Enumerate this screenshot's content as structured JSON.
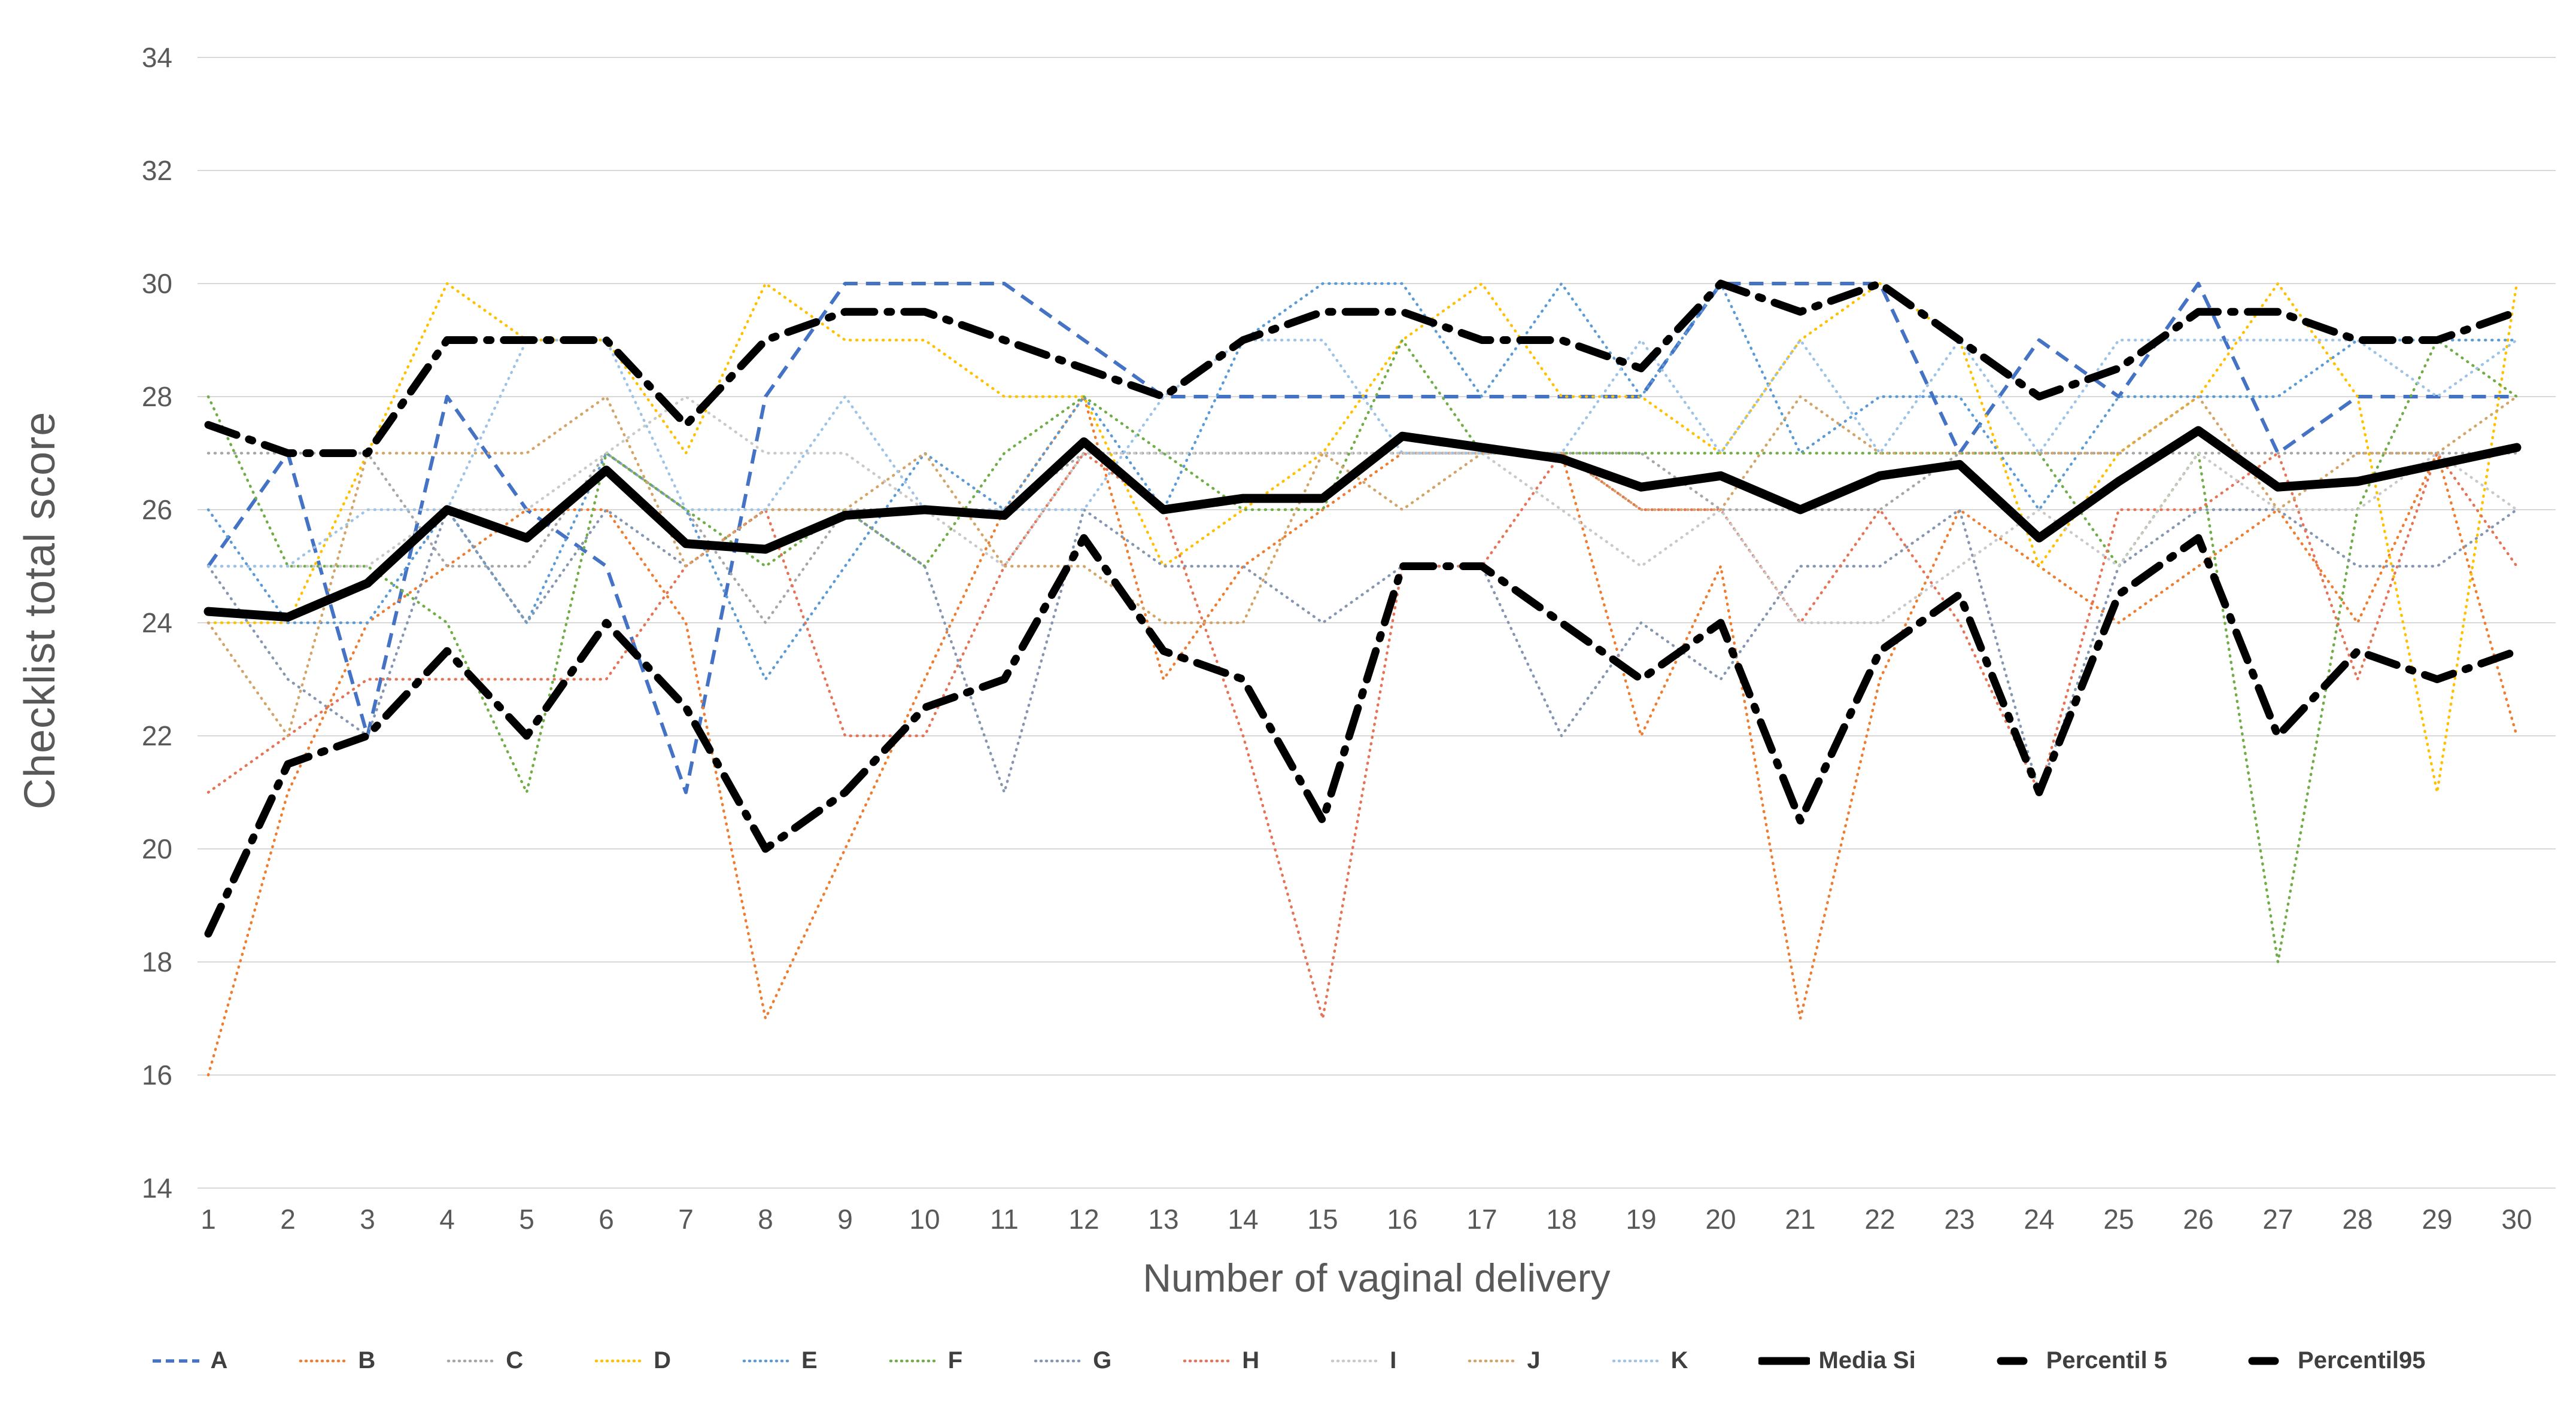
{
  "chart_data": {
    "type": "line",
    "title": "",
    "xlabel": "Number of vaginal delivery",
    "ylabel": "Checklist total score",
    "x": [
      1,
      2,
      3,
      4,
      5,
      6,
      7,
      8,
      9,
      10,
      11,
      12,
      13,
      14,
      15,
      16,
      17,
      18,
      19,
      20,
      21,
      22,
      23,
      24,
      25,
      26,
      27,
      28,
      29,
      30
    ],
    "ylim": [
      14,
      34
    ],
    "ytick_step": 2,
    "grid": true,
    "legend_position": "bottom",
    "grid_color": "#D9D9D9",
    "axis_text_color": "#595959",
    "series": [
      {
        "name": "A",
        "color": "#4472C4",
        "style": "dashed",
        "bold": false,
        "values": [
          25,
          27,
          22,
          28,
          26,
          25,
          21,
          28,
          30,
          30,
          30,
          29,
          28,
          28,
          28,
          28,
          28,
          28,
          28,
          30,
          30,
          30,
          27,
          29,
          28,
          30,
          27,
          28,
          28,
          28
        ]
      },
      {
        "name": "B",
        "color": "#ED7D31",
        "style": "dotted",
        "bold": false,
        "values": [
          16,
          21,
          24,
          25,
          26,
          26,
          24,
          17,
          20,
          23,
          26,
          28,
          23,
          25,
          26,
          27,
          27,
          27,
          22,
          25,
          17,
          23,
          26,
          25,
          24,
          25,
          26,
          24,
          27,
          22
        ]
      },
      {
        "name": "C",
        "color": "#A6A6A6",
        "style": "dotted",
        "bold": false,
        "values": [
          27,
          27,
          27,
          25,
          25,
          27,
          26,
          24,
          26,
          26,
          26,
          27,
          27,
          27,
          27,
          27,
          27,
          27,
          27,
          26,
          26,
          26,
          27,
          27,
          27,
          27,
          27,
          27,
          27,
          27
        ]
      },
      {
        "name": "D",
        "color": "#FFC000",
        "style": "dotted",
        "bold": false,
        "values": [
          24,
          24,
          27,
          30,
          29,
          29,
          27,
          30,
          29,
          29,
          28,
          28,
          25,
          26,
          27,
          29,
          30,
          28,
          28,
          27,
          29,
          30,
          29,
          25,
          27,
          28,
          30,
          28,
          21,
          30
        ]
      },
      {
        "name": "E",
        "color": "#5B9BD5",
        "style": "dotted",
        "bold": false,
        "values": [
          26,
          24,
          24,
          26,
          24,
          27,
          26,
          23,
          25,
          27,
          26,
          28,
          26,
          29,
          30,
          30,
          28,
          30,
          28,
          30,
          27,
          28,
          28,
          26,
          28,
          28,
          28,
          29,
          29,
          29
        ]
      },
      {
        "name": "F",
        "color": "#70AD47",
        "style": "dotted",
        "bold": false,
        "values": [
          28,
          25,
          25,
          24,
          21,
          27,
          26,
          25,
          26,
          25,
          27,
          28,
          27,
          26,
          26,
          29,
          27,
          27,
          27,
          27,
          27,
          27,
          27,
          27,
          25,
          27,
          18,
          26,
          29,
          28
        ]
      },
      {
        "name": "G",
        "color": "#8496B0",
        "style": "dotted",
        "bold": false,
        "values": [
          25,
          23,
          22,
          26,
          24,
          26,
          25,
          26,
          26,
          25,
          21,
          26,
          25,
          25,
          24,
          25,
          25,
          22,
          24,
          23,
          25,
          25,
          26,
          21,
          25,
          26,
          26,
          25,
          25,
          26
        ]
      },
      {
        "name": "H",
        "color": "#E57457",
        "style": "dotted",
        "bold": false,
        "values": [
          21,
          22,
          23,
          23,
          23,
          23,
          25,
          26,
          22,
          22,
          25,
          27,
          26,
          22,
          17,
          25,
          25,
          27,
          26,
          26,
          24,
          26,
          24,
          21,
          26,
          26,
          27,
          23,
          27,
          25
        ]
      },
      {
        "name": "I",
        "color": "#C9C9C9",
        "style": "dotted",
        "bold": false,
        "values": [
          25,
          25,
          25,
          26,
          26,
          27,
          28,
          27,
          27,
          26,
          25,
          27,
          27,
          27,
          27,
          27,
          27,
          26,
          25,
          26,
          24,
          24,
          25,
          26,
          25,
          27,
          26,
          26,
          27,
          26
        ]
      },
      {
        "name": "J",
        "color": "#D2A467",
        "style": "dotted",
        "bold": false,
        "values": [
          24,
          22,
          27,
          27,
          27,
          28,
          25,
          26,
          26,
          27,
          25,
          25,
          24,
          24,
          27,
          26,
          27,
          27,
          26,
          26,
          28,
          27,
          27,
          27,
          27,
          28,
          26,
          27,
          27,
          28
        ]
      },
      {
        "name": "K",
        "color": "#9DC3E6",
        "style": "dotted",
        "bold": false,
        "values": [
          25,
          25,
          26,
          26,
          29,
          29,
          26,
          26,
          28,
          26,
          26,
          26,
          28,
          29,
          29,
          27,
          27,
          27,
          29,
          27,
          29,
          27,
          29,
          27,
          29,
          29,
          29,
          29,
          28,
          29
        ]
      },
      {
        "name": "Media Si",
        "color": "#000000",
        "style": "solid",
        "bold": true,
        "values": [
          24.2,
          24.1,
          24.7,
          26.0,
          25.5,
          26.7,
          25.4,
          25.3,
          25.9,
          26.0,
          25.9,
          27.2,
          26.0,
          26.2,
          26.2,
          27.3,
          27.1,
          26.9,
          26.4,
          26.6,
          26.0,
          26.6,
          26.8,
          25.5,
          26.5,
          27.4,
          26.4,
          26.5,
          26.8,
          27.1
        ]
      },
      {
        "name": "Percentil 5",
        "color": "#000000",
        "style": "dashdot",
        "bold": true,
        "values": [
          18.5,
          21.5,
          22.0,
          23.5,
          22.0,
          24.0,
          22.5,
          20.0,
          21.0,
          22.5,
          23.0,
          25.5,
          23.5,
          23.0,
          20.5,
          25.0,
          25.0,
          24.0,
          23.0,
          24.0,
          20.5,
          23.5,
          24.5,
          21.0,
          24.5,
          25.5,
          22.0,
          23.5,
          23.0,
          23.5
        ]
      },
      {
        "name": "Percentil95",
        "color": "#000000",
        "style": "dashdot",
        "bold": true,
        "values": [
          27.5,
          27.0,
          27.0,
          29.0,
          29.0,
          29.0,
          27.5,
          29.0,
          29.5,
          29.5,
          29.0,
          28.5,
          28.0,
          29.0,
          29.5,
          29.5,
          29.0,
          29.0,
          28.5,
          30.0,
          29.5,
          30.0,
          29.0,
          28.0,
          28.5,
          29.5,
          29.5,
          29.0,
          29.0,
          29.5
        ]
      }
    ]
  }
}
